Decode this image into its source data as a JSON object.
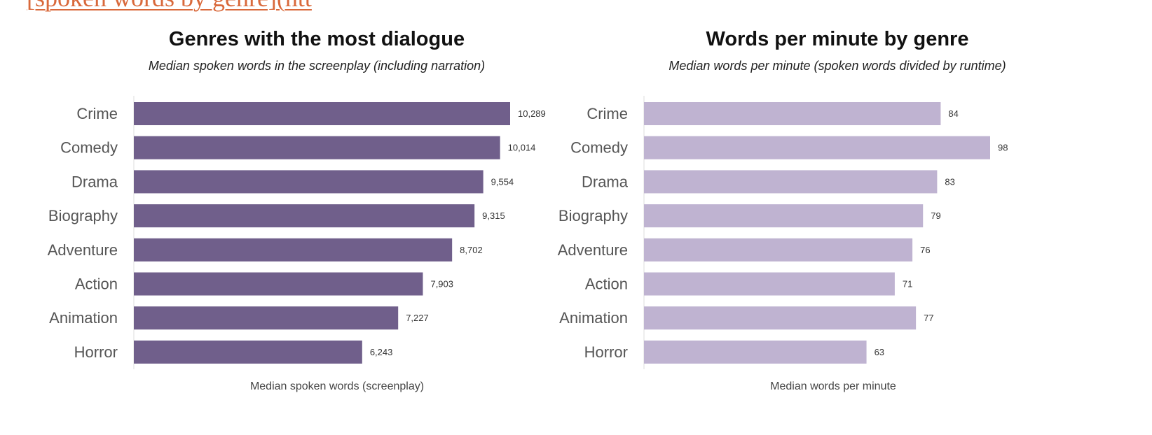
{
  "header_link": "[spoken words by genre](htt",
  "chart_data": [
    {
      "type": "bar",
      "orientation": "horizontal",
      "title": "Genres with the most dialogue",
      "subtitle": "Median spoken words in the screenplay (including narration)",
      "xlabel": "Median spoken words (screenplay)",
      "ylabel": "",
      "categories": [
        "Crime",
        "Comedy",
        "Drama",
        "Biography",
        "Adventure",
        "Action",
        "Animation",
        "Horror"
      ],
      "values": [
        10289,
        10014,
        9554,
        9315,
        8702,
        7903,
        7227,
        6243
      ],
      "value_labels": [
        "10,289",
        "10,014",
        "9,554",
        "9,315",
        "8,702",
        "7,903",
        "7,227",
        "6,243"
      ],
      "xlim": [
        0,
        10289
      ],
      "bar_color": "#705f8b",
      "grid": false,
      "legend": "none"
    },
    {
      "type": "bar",
      "orientation": "horizontal",
      "title": "Words per minute by genre",
      "subtitle": "Median words per minute (spoken words divided by runtime)",
      "xlabel": "Median words per minute",
      "ylabel": "",
      "categories": [
        "Crime",
        "Comedy",
        "Drama",
        "Biography",
        "Adventure",
        "Action",
        "Animation",
        "Horror"
      ],
      "values": [
        84,
        98,
        83,
        79,
        76,
        71,
        77,
        63
      ],
      "value_labels": [
        "84",
        "98",
        "83",
        "79",
        "76",
        "71",
        "77",
        "63"
      ],
      "xlim": [
        0,
        98
      ],
      "bar_color": "#bfb3d1",
      "grid": false,
      "legend": "none"
    }
  ]
}
